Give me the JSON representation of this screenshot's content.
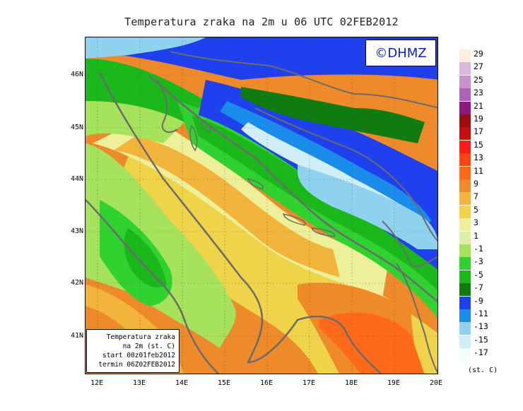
{
  "title": "Temperatura zraka na 2m u 06 UTC 02FEB2012",
  "watermark": "©DHMZ",
  "info_box": {
    "line1": "Temperatura zraka",
    "line2": "na 2m (st. C)",
    "line3": "start 00z01feb2012",
    "line4": "termin 06Z02FEB2012"
  },
  "lat_labels": [
    "46N",
    "45N",
    "44N",
    "43N",
    "42N",
    "41N"
  ],
  "lon_labels": [
    "12E",
    "13E",
    "14E",
    "15E",
    "16E",
    "17E",
    "18E",
    "19E",
    "20E"
  ],
  "legend": {
    "unit": "(st. C)",
    "labels": [
      "29",
      "27",
      "25",
      "23",
      "21",
      "19",
      "17",
      "15",
      "13",
      "11",
      "9",
      "7",
      "5",
      "3",
      "1",
      "-1",
      "-3",
      "-5",
      "-7",
      "-9",
      "-11",
      "-13",
      "-15",
      "-17"
    ],
    "colors": [
      "#fdeee0",
      "#d8b8dc",
      "#c892cc",
      "#b060b8",
      "#8a1a80",
      "#9c0f0f",
      "#c40f0f",
      "#ff1a1a",
      "#ff4410",
      "#ff6a1a",
      "#ef8a2a",
      "#f3b43c",
      "#efd44a",
      "#edf098",
      "#ddf0a8",
      "#a6e25c",
      "#2fd22f",
      "#1ab81a",
      "#0e7c0e",
      "#1e40ee",
      "#1a8cec",
      "#8ed2f0",
      "#cfeef8",
      "#f4fcfe"
    ]
  },
  "colors": {
    "sea_warm": "#ef8a2a",
    "coast_line": "#6b6b6b",
    "mountain_cold": "#1e40ee",
    "watermark_blue": "#0b22c8"
  }
}
